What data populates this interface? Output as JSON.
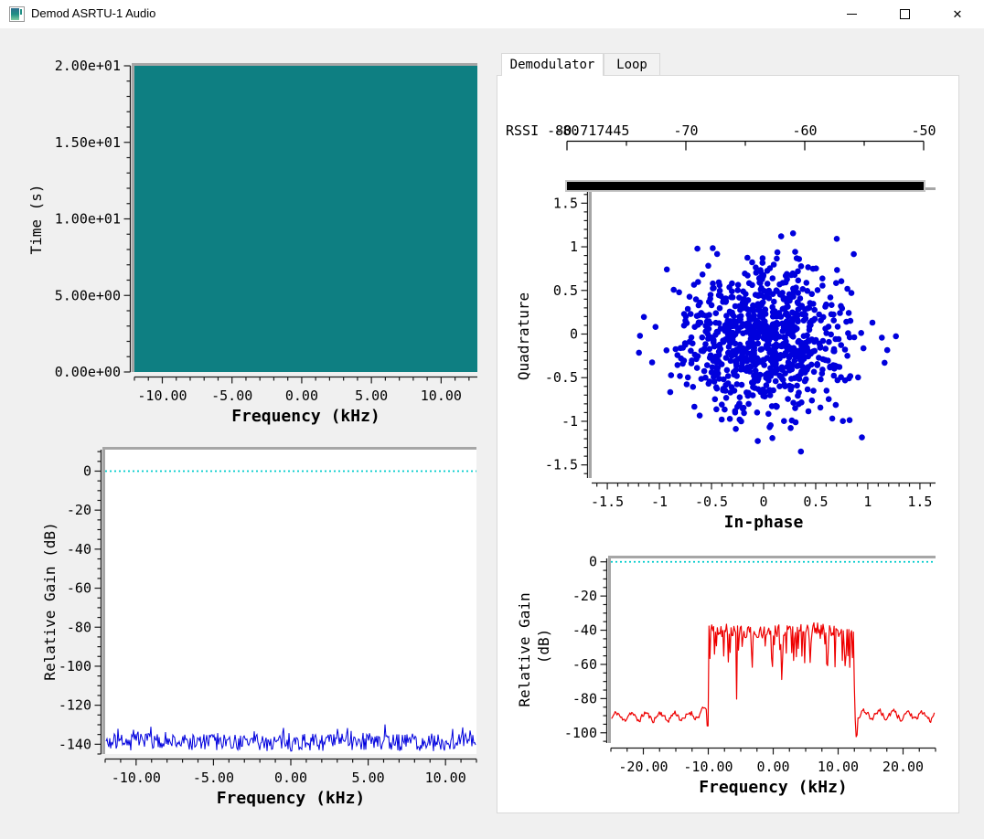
{
  "window": {
    "title": "Demod ASRTU-1 Audio",
    "controls": [
      {
        "name": "minimize"
      },
      {
        "name": "maximize"
      },
      {
        "name": "close",
        "glyph": "✕"
      }
    ]
  },
  "colors": {
    "client_bg": "#f0f0f0",
    "titlebar_bg": "#ffffff",
    "panel_bg": "#ffffff",
    "panel_border": "#d9d9d9",
    "plot_bevel_gray": "#a6a6a6",
    "axis_black": "#1a1a1a",
    "waterfall_teal": "#0e7f82",
    "trace_blue": "#0000dd",
    "trace_red": "#ee0000",
    "ref_line_cyan": "#00cccc",
    "meter_fill": "#000000"
  },
  "panel": {
    "tabs": [
      {
        "label": "Demodulator",
        "active": true
      },
      {
        "label": "Loop",
        "active": false
      }
    ],
    "rssi": {
      "label": "RSSI",
      "value": "-80.717445",
      "scale": {
        "min": -80,
        "max": -50,
        "major_ticks": [
          -80,
          -70,
          -60,
          -50
        ],
        "tick_labels": [
          "-80",
          "-70",
          "-60",
          "-50"
        ],
        "minor_step": 5,
        "bar_fill_fraction": 1.0
      }
    }
  },
  "chart_data": [
    {
      "id": "waterfall",
      "type": "heatmap",
      "xlabel": "Frequency (kHz)",
      "ylabel": "Time (s)",
      "xlim": [
        -12,
        12.6
      ],
      "ylim": [
        0,
        20
      ],
      "x_ticks": [
        -10,
        -5,
        0,
        5,
        10
      ],
      "x_tick_labels": [
        "-10.00",
        "-5.00",
        "0.00",
        "5.00",
        "10.00"
      ],
      "x_minor_step": 1,
      "y_ticks": [
        0,
        5,
        10,
        15,
        20
      ],
      "y_tick_labels": [
        "0.00e+00",
        "5.00e+00",
        "1.00e+01",
        "1.50e+01",
        "2.00e+01"
      ],
      "y_minor_step": 1,
      "fill": "#0e7f82",
      "description": "uniform waterfall, no visible signal energy"
    },
    {
      "id": "baseband_spectrum",
      "type": "line",
      "xlabel": "Frequency (kHz)",
      "ylabel": "Relative Gain (dB)",
      "xlim": [
        -12,
        12
      ],
      "ylim": [
        -145,
        11
      ],
      "x_ticks": [
        -10,
        -5,
        0,
        5,
        10
      ],
      "x_tick_labels": [
        "-10.00",
        "-5.00",
        "0.00",
        "5.00",
        "10.00"
      ],
      "x_minor_step": 1,
      "y_ticks": [
        0,
        -20,
        -40,
        -60,
        -80,
        -100,
        -120,
        -140
      ],
      "y_tick_labels": [
        "0",
        "-20",
        "-40",
        "-60",
        "-80",
        "-100",
        "-120",
        "-140"
      ],
      "y_minor_step": 5,
      "ref_line_db": 0,
      "series": [
        {
          "name": "noise-floor",
          "color": "#0000dd",
          "mean_db": -138,
          "min_db": -143.5,
          "max_db": -129,
          "seed": 7
        }
      ]
    },
    {
      "id": "constellation",
      "type": "scatter",
      "xlabel": "In-phase",
      "ylabel": "Quadrature",
      "xlim": [
        -1.65,
        1.65
      ],
      "ylim": [
        -1.65,
        1.65
      ],
      "x_ticks": [
        -1.5,
        -1,
        -0.5,
        0,
        0.5,
        1,
        1.5
      ],
      "x_tick_labels": [
        "-1.5",
        "-1",
        "-0.5",
        "0",
        "0.5",
        "1",
        "1.5"
      ],
      "x_minor_step": 0.1,
      "y_ticks": [
        -1.5,
        -1,
        -0.5,
        0,
        0.5,
        1,
        1.5
      ],
      "y_tick_labels": [
        "-1.5",
        "-1",
        "-0.5",
        "0",
        "0.5",
        "1",
        "1.5"
      ],
      "y_minor_step": 0.1,
      "points": {
        "count": 850,
        "sigma": 0.42,
        "center_x": 0.02,
        "center_y": -0.06,
        "clip": 1.5,
        "color": "#0000dd",
        "radius_px": 3.3,
        "seed": 3
      }
    },
    {
      "id": "demod_spectrum",
      "type": "line",
      "xlabel": "Frequency (kHz)",
      "ylabel_lines": [
        "Relative Gain",
        "(dB)"
      ],
      "xlim": [
        -25,
        25
      ],
      "ylim": [
        -106,
        2
      ],
      "x_ticks": [
        -20,
        -10,
        0,
        10,
        20
      ],
      "x_tick_labels": [
        "-20.00",
        "-10.00",
        "0.00",
        "10.00",
        "20.00"
      ],
      "x_minor_step": 2.5,
      "y_ticks": [
        0,
        -20,
        -40,
        -60,
        -80,
        -100
      ],
      "y_tick_labels": [
        "0",
        "-20",
        "-40",
        "-60",
        "-80",
        "-100"
      ],
      "y_minor_step": 5,
      "ref_line_db": 0,
      "series": [
        {
          "name": "demod-psd",
          "color": "#ee0000",
          "floor_db": -90,
          "passband_khz": [
            -10,
            12.4
          ],
          "passband_db": -41,
          "notch_khz": 12.65,
          "notch_db": -103,
          "seed": 11
        }
      ]
    }
  ]
}
